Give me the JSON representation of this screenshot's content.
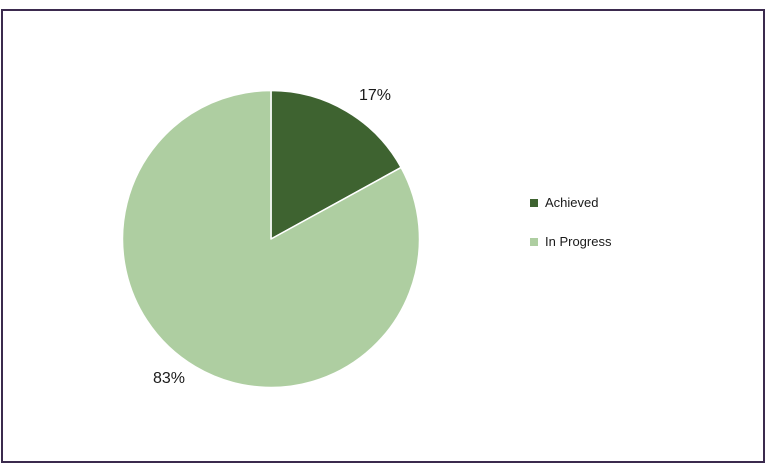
{
  "frame": {
    "background": "#ffffff",
    "border_color": "#3b2a4e"
  },
  "chart_data": {
    "type": "pie",
    "title": "",
    "categories": [
      "Achieved",
      "In Progress"
    ],
    "values": [
      17,
      83
    ],
    "data_labels": [
      "17%",
      "83%"
    ],
    "colors": [
      "#3e6330",
      "#aecea1"
    ],
    "slice_separator_color": "#ffffff",
    "start_angle_deg": -90,
    "direction": "clockwise",
    "legend_position": "right"
  }
}
